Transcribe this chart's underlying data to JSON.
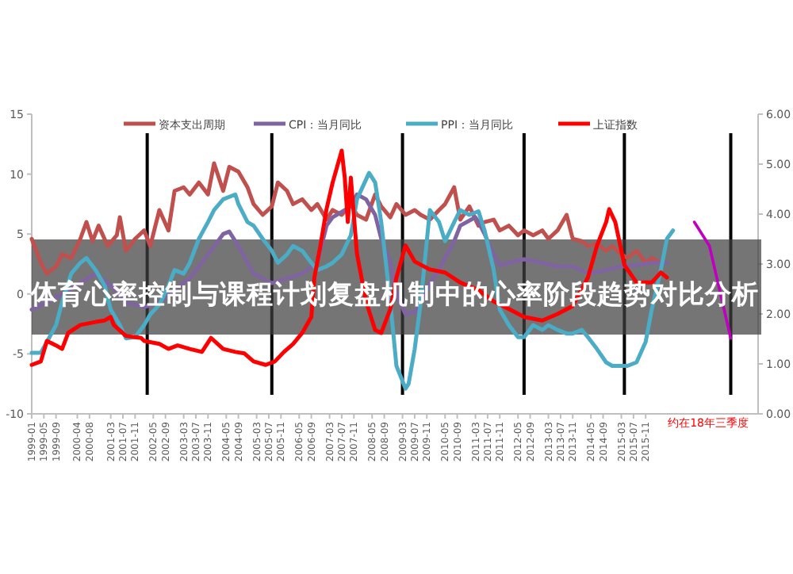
{
  "chart_data": {
    "type": "line",
    "title": "体育心率控制与课程计划复盘机制中的心率阶段趋势对比分析",
    "xlim": [
      "1999-01",
      "2018-12"
    ],
    "xticks": [
      "1999-01",
      "1999-05",
      "1999-09",
      "2000-04",
      "2000-08",
      "2001-03",
      "2001-07",
      "2001-11",
      "2002-05",
      "2002-09",
      "2003-03",
      "2003-07",
      "2003-11",
      "2004-05",
      "2004-09",
      "2005-03",
      "2005-07",
      "2005-11",
      "2006-05",
      "2006-09",
      "2007-03",
      "2007-07",
      "2007-11",
      "2008-05",
      "2008-09",
      "2009-03",
      "2009-07",
      "2009-11",
      "2010-05",
      "2010-09",
      "2011-03",
      "2011-07",
      "2011-11",
      "2012-05",
      "2012-09",
      "2013-03",
      "2013-07",
      "2013-11",
      "2014-05",
      "2014-09",
      "2015-03",
      "2015-07",
      "2015-11"
    ],
    "ylim": [
      -10,
      15
    ],
    "yticks": [
      -10,
      -5,
      0,
      5,
      10,
      15
    ],
    "y2lim": [
      0,
      6
    ],
    "y2ticks": [
      {
        "value": 0,
        "label": "0.00"
      },
      {
        "value": 1,
        "label": "1.00"
      },
      {
        "value": 2,
        "label": "2.00"
      },
      {
        "value": 3,
        "label": "3.00"
      },
      {
        "value": 4,
        "label": "4.00"
      },
      {
        "value": 5,
        "label": "5.00"
      },
      {
        "value": 6,
        "label": "6.00"
      }
    ],
    "legend": "top",
    "series": [
      {
        "name": "资本支出周期",
        "color": "#c0504d",
        "x": [
          "1999-01",
          "1999-04",
          "1999-06",
          "1999-09",
          "1999-11",
          "2000-02",
          "2000-05",
          "2000-07",
          "2000-09",
          "2000-11",
          "2001-02",
          "2001-05",
          "2001-06",
          "2001-08",
          "2001-11",
          "2002-02",
          "2002-04",
          "2002-07",
          "2002-10",
          "2002-12",
          "2003-03",
          "2003-05",
          "2003-08",
          "2003-11",
          "2004-01",
          "2004-04",
          "2004-06",
          "2004-09",
          "2004-12",
          "2005-02",
          "2005-05",
          "2005-08",
          "2005-10",
          "2006-01",
          "2006-03",
          "2006-06",
          "2006-09",
          "2006-11",
          "2007-02",
          "2007-04",
          "2007-07",
          "2007-10",
          "2007-12",
          "2008-03",
          "2008-06",
          "2008-08",
          "2008-11",
          "2009-01",
          "2009-04",
          "2009-07",
          "2009-09",
          "2009-12",
          "2010-03",
          "2010-05",
          "2010-08",
          "2010-10",
          "2011-01",
          "2011-04",
          "2011-06",
          "2011-09",
          "2011-11",
          "2012-02",
          "2012-05",
          "2012-07",
          "2012-10",
          "2013-01",
          "2013-03",
          "2013-06",
          "2013-09",
          "2013-11",
          "2014-02",
          "2014-04",
          "2014-07",
          "2014-10",
          "2014-12",
          "2015-03",
          "2015-05",
          "2015-08",
          "2015-11",
          "2016-01",
          "2016-04"
        ],
        "values": [
          4.6,
          2.6,
          1.7,
          2.3,
          3.3,
          3.0,
          4.6,
          6.0,
          4.4,
          5.7,
          4.0,
          4.9,
          6.4,
          3.6,
          4.6,
          5.3,
          4.0,
          7.0,
          5.3,
          8.6,
          8.9,
          8.3,
          9.3,
          8.3,
          10.9,
          8.6,
          10.6,
          10.2,
          8.9,
          7.5,
          6.6,
          7.3,
          9.3,
          8.6,
          7.5,
          7.9,
          7.0,
          7.5,
          6.2,
          7.0,
          6.6,
          7.5,
          6.6,
          6.2,
          8.3,
          7.3,
          6.4,
          7.5,
          6.6,
          7.0,
          6.6,
          6.2,
          7.0,
          7.5,
          8.9,
          6.2,
          7.3,
          5.7,
          6.0,
          6.2,
          5.3,
          5.7,
          4.9,
          5.3,
          4.9,
          5.3,
          4.6,
          5.3,
          6.6,
          4.6,
          4.4,
          4.0,
          4.2,
          3.6,
          4.0,
          3.3,
          3.0,
          3.6,
          2.6,
          3.0,
          2.6
        ]
      },
      {
        "name": "CPI：当月同比",
        "color": "#8064a2",
        "x": [
          "1999-01",
          "1999-06",
          "1999-11",
          "2000-05",
          "2000-10",
          "2001-03",
          "2001-08",
          "2002-02",
          "2002-07",
          "2002-12",
          "2003-05",
          "2003-11",
          "2004-04",
          "2004-06",
          "2004-09",
          "2005-02",
          "2005-08",
          "2006-01",
          "2006-06",
          "2006-11",
          "2007-02",
          "2007-04",
          "2007-10",
          "2007-12",
          "2008-03",
          "2008-06",
          "2008-08",
          "2008-11",
          "2009-01",
          "2009-04",
          "2009-07",
          "2009-09",
          "2009-12",
          "2010-03",
          "2010-05",
          "2010-08",
          "2010-10",
          "2011-03",
          "2011-04",
          "2011-06",
          "2011-09",
          "2011-11",
          "2012-02",
          "2012-07",
          "2013-01",
          "2013-06",
          "2013-11",
          "2014-04",
          "2014-10",
          "2015-03",
          "2015-08",
          "2016-01",
          "2016-06"
        ],
        "values": [
          -1.3,
          -0.7,
          0.0,
          0.9,
          1.7,
          0.7,
          -0.7,
          -1.1,
          -0.7,
          0.4,
          1.3,
          3.3,
          5.0,
          5.2,
          4.0,
          1.7,
          0.9,
          1.3,
          1.7,
          2.6,
          5.7,
          6.4,
          7.3,
          8.3,
          7.9,
          6.6,
          4.6,
          2.6,
          0.0,
          -1.7,
          -1.5,
          -0.7,
          0.9,
          2.0,
          3.0,
          4.4,
          5.7,
          6.4,
          6.0,
          5.0,
          3.3,
          2.4,
          2.6,
          2.9,
          2.6,
          2.3,
          2.3,
          1.7,
          2.0,
          2.3,
          2.4,
          2.6,
          2.6
        ]
      },
      {
        "name": "PPI：当月同比",
        "color": "#4bacc6",
        "x": [
          "1999-01",
          "1999-04",
          "1999-06",
          "1999-09",
          "1999-11",
          "2000-02",
          "2000-05",
          "2000-07",
          "2000-10",
          "2001-01",
          "2001-03",
          "2001-06",
          "2001-08",
          "2001-11",
          "2002-02",
          "2002-04",
          "2002-07",
          "2002-10",
          "2002-12",
          "2003-03",
          "2003-05",
          "2003-08",
          "2003-11",
          "2004-01",
          "2004-04",
          "2004-08",
          "2004-09",
          "2004-12",
          "2005-02",
          "2005-05",
          "2005-08",
          "2005-10",
          "2006-01",
          "2006-03",
          "2006-06",
          "2006-09",
          "2006-11",
          "2007-02",
          "2007-04",
          "2007-07",
          "2007-10",
          "2007-12",
          "2008-04",
          "2008-06",
          "2008-08",
          "2008-11",
          "2009-01",
          "2009-04",
          "2009-05",
          "2009-07",
          "2009-09",
          "2009-12",
          "2010-03",
          "2010-05",
          "2010-08",
          "2010-10",
          "2011-01",
          "2011-04",
          "2011-06",
          "2011-09",
          "2011-11",
          "2012-02",
          "2012-05",
          "2012-07",
          "2012-10",
          "2013-01",
          "2013-03",
          "2013-06",
          "2013-09",
          "2013-11",
          "2014-02",
          "2014-04",
          "2014-07",
          "2014-10",
          "2014-12",
          "2015-03",
          "2015-05",
          "2015-08",
          "2015-11",
          "2016-01",
          "2016-04",
          "2016-06",
          "2016-08"
        ],
        "values": [
          -4.9,
          -4.9,
          -4.0,
          -2.6,
          -0.7,
          1.7,
          2.6,
          3.0,
          2.0,
          0.7,
          -1.3,
          -2.6,
          -3.7,
          -3.6,
          -2.6,
          -1.7,
          -0.9,
          0.7,
          2.0,
          1.7,
          2.6,
          4.6,
          6.0,
          7.0,
          7.9,
          8.3,
          7.5,
          6.0,
          5.7,
          4.6,
          3.6,
          2.6,
          3.3,
          4.0,
          3.6,
          2.6,
          2.0,
          2.3,
          2.6,
          3.3,
          4.9,
          7.9,
          10.1,
          9.3,
          6.0,
          -0.7,
          -6.0,
          -7.9,
          -7.5,
          -4.6,
          -0.7,
          7.0,
          6.0,
          4.4,
          6.0,
          7.0,
          6.6,
          6.9,
          5.3,
          2.0,
          -1.3,
          -2.6,
          -3.6,
          -3.6,
          -2.6,
          -3.0,
          -2.6,
          -3.0,
          -3.3,
          -3.3,
          -3.0,
          -3.6,
          -4.6,
          -5.7,
          -6.0,
          -6.0,
          -6.0,
          -5.7,
          -4.0,
          -1.3,
          2.0,
          4.6,
          5.3
        ]
      },
      {
        "name": "上证指数",
        "color": "#ff0000",
        "axis": "y2",
        "x": [
          "1999-01",
          "1999-04",
          "1999-06",
          "1999-09",
          "1999-11",
          "2000-01",
          "2000-05",
          "2000-10",
          "2001-01",
          "2001-03",
          "2001-04",
          "2001-08",
          "2002-01",
          "2002-02",
          "2002-07",
          "2002-10",
          "2003-01",
          "2003-05",
          "2003-09",
          "2003-12",
          "2004-04",
          "2004-08",
          "2004-11",
          "2005-02",
          "2005-06",
          "2005-09",
          "2005-12",
          "2006-03",
          "2006-06",
          "2006-09",
          "2006-10",
          "2006-12",
          "2007-02",
          "2007-04",
          "2007-07",
          "2007-08",
          "2007-09",
          "2007-10",
          "2007-12",
          "2008-03",
          "2008-06",
          "2008-08",
          "2008-11",
          "2009-01",
          "2009-04",
          "2009-07",
          "2009-12",
          "2010-05",
          "2010-10",
          "2011-04",
          "2011-09",
          "2012-02",
          "2012-07",
          "2013-01",
          "2013-06",
          "2013-11",
          "2014-04",
          "2014-07",
          "2014-10",
          "2014-11",
          "2015-01",
          "2015-04",
          "2015-08",
          "2016-01",
          "2016-04",
          "2016-06"
        ],
        "values": [
          0.98,
          1.05,
          1.46,
          1.37,
          1.3,
          1.62,
          1.78,
          1.84,
          1.87,
          1.94,
          1.78,
          1.56,
          1.52,
          1.46,
          1.4,
          1.3,
          1.37,
          1.3,
          1.24,
          1.52,
          1.3,
          1.24,
          1.21,
          1.05,
          0.98,
          1.05,
          1.24,
          1.4,
          1.62,
          1.94,
          2.73,
          3.37,
          4.1,
          4.63,
          5.27,
          4.73,
          3.84,
          4.73,
          3.21,
          2.25,
          1.68,
          1.62,
          2.1,
          2.73,
          3.37,
          3.05,
          2.89,
          2.83,
          2.63,
          2.48,
          2.25,
          2.1,
          1.94,
          1.87,
          2.0,
          2.16,
          2.73,
          3.37,
          3.84,
          4.1,
          3.84,
          2.98,
          2.63,
          2.63,
          2.83,
          2.73
        ]
      },
      {
        "color": "#c000c0",
        "x": [
          "2017-03",
          "2017-08",
          "2018-03"
        ],
        "values": [
          6.0,
          4.0,
          -3.7
        ]
      }
    ],
    "ref_lines": [
      {
        "axis": "x",
        "value": "2002-03",
        "color": "#000000"
      },
      {
        "axis": "x",
        "value": "2005-08",
        "color": "#000000"
      },
      {
        "axis": "x",
        "value": "2009-03",
        "color": "#000000"
      },
      {
        "axis": "x",
        "value": "2012-07",
        "color": "#000000"
      },
      {
        "axis": "x",
        "value": "2015-04",
        "color": "#000000"
      },
      {
        "axis": "x",
        "value": "2018-03",
        "color": "#000000"
      }
    ],
    "annotations": [
      "约在18年三季度"
    ]
  }
}
